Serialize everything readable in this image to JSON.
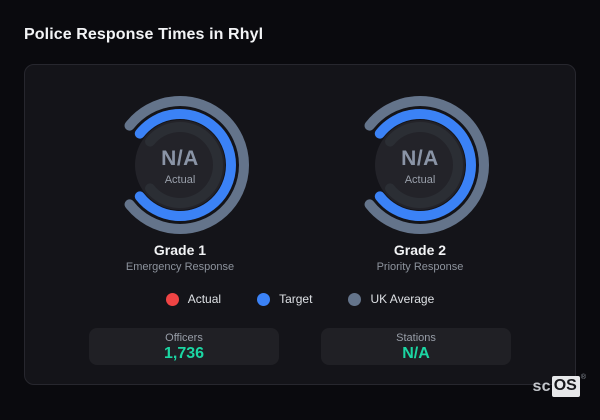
{
  "page": {
    "title": "Police Response Times in Rhyl"
  },
  "brand": {
    "prefix": "sc",
    "box": "OS",
    "registered": "®"
  },
  "colors": {
    "actual": "#ef4444",
    "target": "#3b82f6",
    "uk_average": "#64748b",
    "stat_value_green": "#1bd6a3",
    "ring_track": "#2b2e34",
    "gauge_disc": "#232329"
  },
  "legend": [
    {
      "label": "Actual",
      "color": "#ef4444"
    },
    {
      "label": "Target",
      "color": "#3b82f6"
    },
    {
      "label": "UK Average",
      "color": "#64748b"
    }
  ],
  "chart_data": [
    {
      "type": "gauge",
      "title": "Grade 1",
      "subtitle": "Emergency Response",
      "center_value": "N/A",
      "center_label": "Actual",
      "rings": [
        {
          "name": "UK Average",
          "color": "#64748b",
          "fraction": 1
        },
        {
          "name": "Target",
          "color": "#3b82f6",
          "fraction": 1
        },
        {
          "name": "Actual",
          "color": "#ef4444",
          "fraction": null
        }
      ]
    },
    {
      "type": "gauge",
      "title": "Grade 2",
      "subtitle": "Priority Response",
      "center_value": "N/A",
      "center_label": "Actual",
      "rings": [
        {
          "name": "UK Average",
          "color": "#64748b",
          "fraction": 1
        },
        {
          "name": "Target",
          "color": "#3b82f6",
          "fraction": 1
        },
        {
          "name": "Actual",
          "color": "#ef4444",
          "fraction": null
        }
      ]
    }
  ],
  "stats": [
    {
      "label": "Officers",
      "value": "1,736"
    },
    {
      "label": "Stations",
      "value": "N/A"
    }
  ]
}
